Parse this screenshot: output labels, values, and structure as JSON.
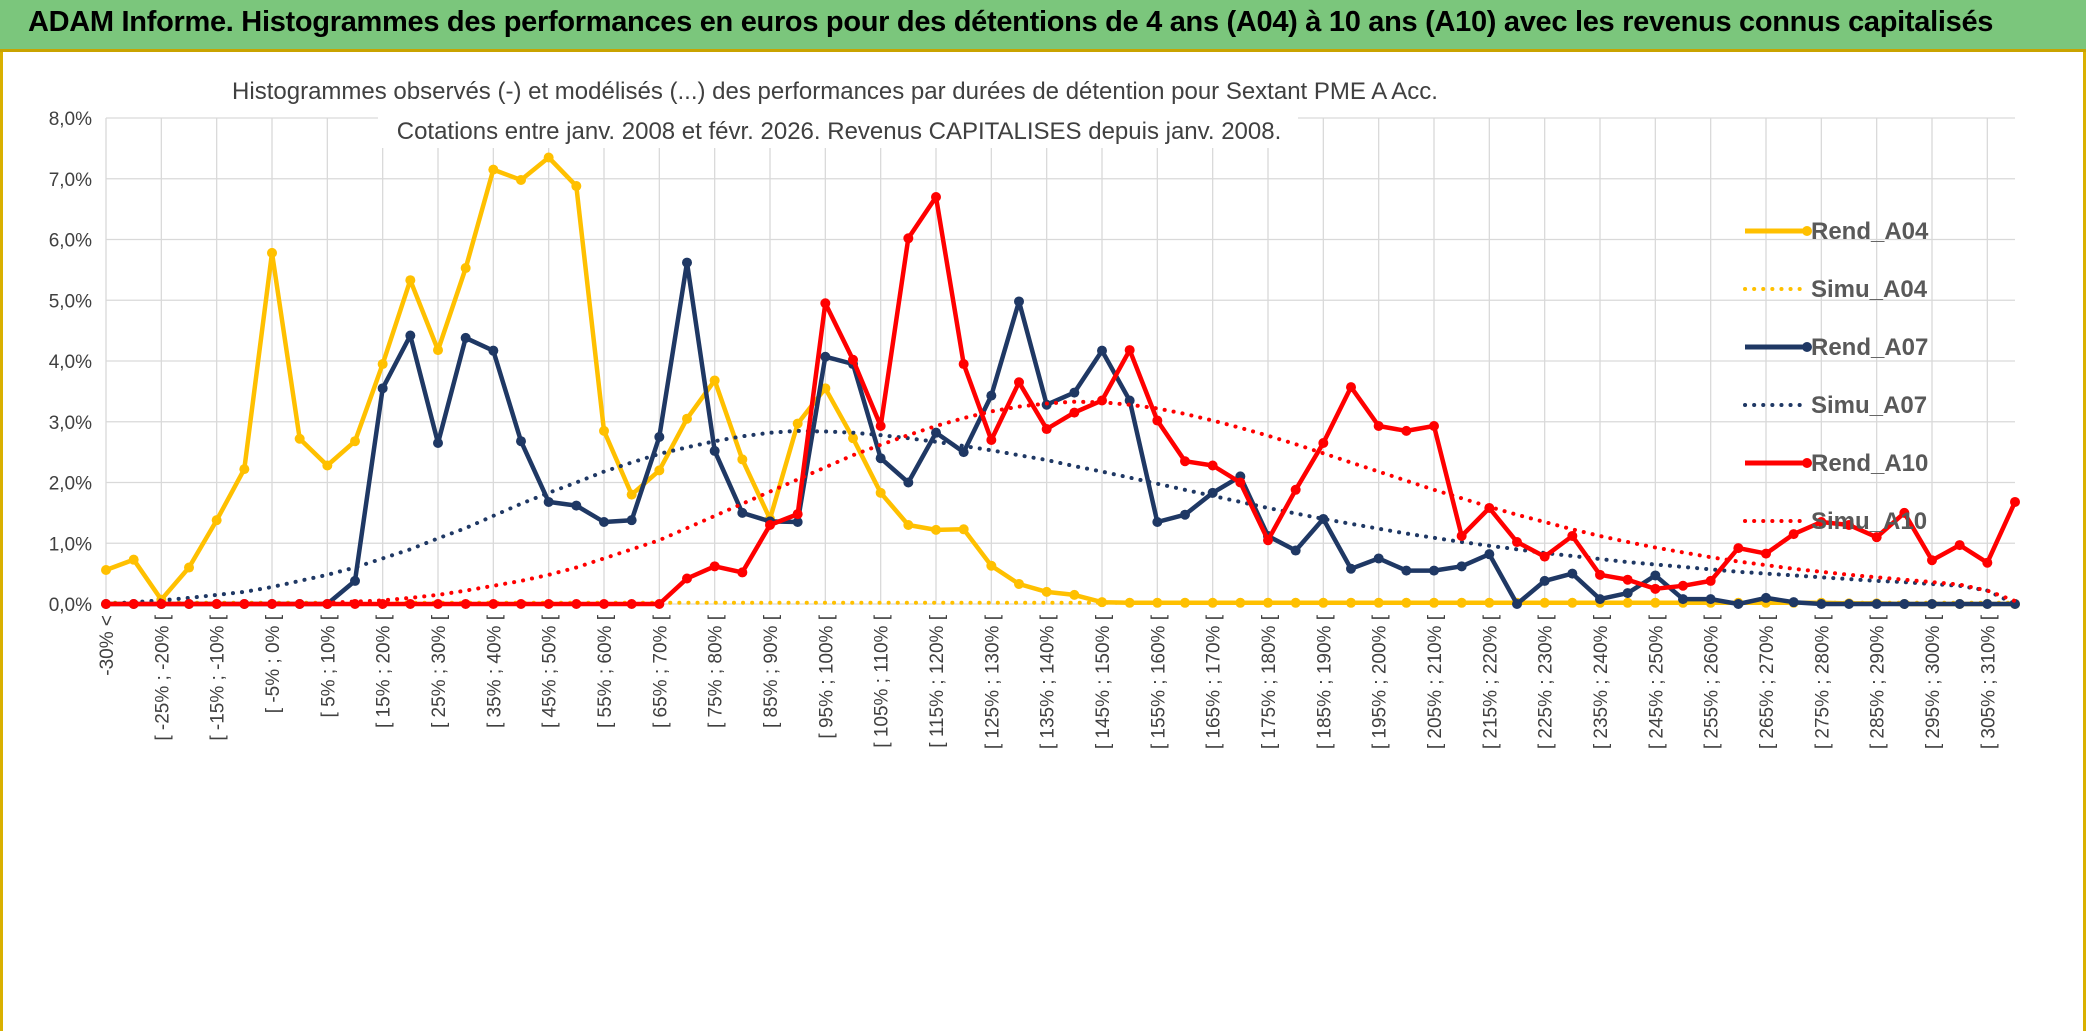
{
  "header": {
    "title": "ADAM Informe. Histogrammes des performances en euros pour des détentions de 4 ans (A04) à 10 ans (A10) avec les revenus connus capitalisés"
  },
  "chart_data": {
    "type": "line",
    "title_line1": "Histogrammes observés (-) et modélisés (...) des performances par durées de détention pour Sextant PME A Acc.",
    "title_line2": "Cotations entre janv. 2008 et févr. 2026. Revenus CAPITALISES depuis janv. 2008.",
    "ylim": [
      0,
      8
    ],
    "y_ticks": [
      "0,0%",
      "1,0%",
      "2,0%",
      "3,0%",
      "4,0%",
      "5,0%",
      "6,0%",
      "7,0%",
      "8,0%"
    ],
    "grid": true,
    "legend_position": "right",
    "x_labels": [
      "-30% <",
      "[ -25% ; -20% [",
      "[ -15% ; -10% [",
      "[ -5% ; 0% [",
      "[ 5% ; 10% [",
      "[ 15% ; 20% [",
      "[ 25% ; 30% [",
      "[ 35% ; 40% [",
      "[ 45% ; 50% [",
      "[ 55% ; 60% [",
      "[ 65% ; 70% [",
      "[ 75% ; 80% [",
      "[ 85% ; 90% [",
      "[ 95% ; 100% [",
      "[ 105% ; 110% [",
      "[ 115% ; 120% [",
      "[ 125% ; 130% [",
      "[ 135% ; 140% [",
      "[ 145% ; 150% [",
      "[ 155% ; 160% [",
      "[ 165% ; 170% [",
      "[ 175% ; 180% [",
      "[ 185% ; 190% [",
      "[ 195% ; 200% [",
      "[ 205% ; 210% [",
      "[ 215% ; 220% [",
      "[ 225% ; 230% [",
      "[ 235% ; 240% [",
      "[ 245% ; 250% [",
      "[ 255% ; 260% [",
      "[ 265% ; 270% [",
      "[ 275% ; 280% [",
      "[ 285% ; 290% [",
      "[ 295% ; 300% [",
      "[ 305% ; 310% ["
    ],
    "series": [
      {
        "name": "Rend_A04",
        "style": "solid",
        "color": "#ffc000",
        "values": [
          0.56,
          0.73,
          0.07,
          0.6,
          1.38,
          2.22,
          5.78,
          2.72,
          2.28,
          2.68,
          3.95,
          5.33,
          4.18,
          5.53,
          7.15,
          6.98,
          7.35,
          6.88,
          2.85,
          1.8,
          2.2,
          3.05,
          3.68,
          2.38,
          1.4,
          2.97,
          3.55,
          2.73,
          1.83,
          1.3,
          1.22,
          1.23,
          0.63,
          0.33,
          0.2,
          0.15,
          0.03,
          0.02,
          0.02,
          0.02,
          0.02,
          0.02,
          0.02,
          0.02,
          0.02,
          0.02,
          0.02,
          0.02,
          0.02,
          0.02,
          0.02,
          0.02,
          0.02,
          0.02,
          0.02,
          0.02,
          0.02,
          0.02,
          0.02,
          0.02,
          0.02,
          0.02,
          0.02,
          0.01,
          0.01,
          0.0,
          0.0,
          0.0,
          0.0,
          0.0
        ]
      },
      {
        "name": "Simu_A04",
        "style": "dotted",
        "color": "#ffc000",
        "values": [
          0.02,
          0.02,
          0.02,
          0.02,
          0.02,
          0.02,
          0.02,
          0.02,
          0.02,
          0.02,
          0.02,
          0.02,
          0.02,
          0.02,
          0.02,
          0.02,
          0.02,
          0.02,
          0.02,
          0.02,
          0.02,
          0.02,
          0.02,
          0.02,
          0.02,
          0.02,
          0.02,
          0.02,
          0.02,
          0.02,
          0.02,
          0.02,
          0.02,
          0.02,
          0.02,
          0.02,
          0.02,
          0.02,
          0.02,
          0.02,
          0.02,
          0.02,
          0.02,
          0.02,
          0.02,
          0.02,
          0.02,
          0.02,
          0.02,
          0.02,
          0.02,
          0.02,
          0.02,
          0.02,
          0.02,
          0.02,
          0.02,
          0.02,
          0.02,
          0.02,
          0.02,
          0.02,
          0.02,
          0.02,
          0.02,
          0.02,
          0.02,
          0.02,
          0.02,
          0.02
        ]
      },
      {
        "name": "Rend_A07",
        "style": "solid",
        "color": "#1f3864",
        "values": [
          0,
          0,
          0,
          0,
          0,
          0,
          0,
          0,
          0,
          0.38,
          3.55,
          4.42,
          2.65,
          4.38,
          4.17,
          2.68,
          1.68,
          1.62,
          1.35,
          1.38,
          2.75,
          5.62,
          2.52,
          1.5,
          1.36,
          1.35,
          4.07,
          3.95,
          2.4,
          2.0,
          2.82,
          2.5,
          3.43,
          4.98,
          3.28,
          3.48,
          4.17,
          3.35,
          1.35,
          1.47,
          1.83,
          2.1,
          1.12,
          0.88,
          1.4,
          0.58,
          0.75,
          0.55,
          0.55,
          0.62,
          0.82,
          0.0,
          0.38,
          0.5,
          0.08,
          0.18,
          0.47,
          0.08,
          0.08,
          0.0,
          0.1,
          0.03,
          0.0,
          0.0,
          0.0,
          0.0,
          0.0,
          0.0,
          0.0,
          0.0
        ]
      },
      {
        "name": "Simu_A07",
        "style": "dotted",
        "color": "#1f3864",
        "values": [
          0.0,
          0.03,
          0.06,
          0.1,
          0.15,
          0.2,
          0.28,
          0.38,
          0.48,
          0.6,
          0.75,
          0.9,
          1.08,
          1.25,
          1.45,
          1.65,
          1.83,
          2.0,
          2.18,
          2.33,
          2.47,
          2.58,
          2.68,
          2.76,
          2.82,
          2.85,
          2.84,
          2.82,
          2.78,
          2.73,
          2.67,
          2.6,
          2.53,
          2.45,
          2.37,
          2.27,
          2.18,
          2.08,
          1.98,
          1.88,
          1.78,
          1.68,
          1.58,
          1.49,
          1.4,
          1.32,
          1.24,
          1.16,
          1.09,
          1.02,
          0.96,
          0.9,
          0.84,
          0.79,
          0.74,
          0.69,
          0.65,
          0.61,
          0.57,
          0.53,
          0.5,
          0.47,
          0.44,
          0.41,
          0.38,
          0.36,
          0.33,
          0.3,
          0.22,
          0.0
        ]
      },
      {
        "name": "Rend_A10",
        "style": "solid",
        "color": "#ff0000",
        "values": [
          0,
          0,
          0,
          0,
          0,
          0,
          0,
          0,
          0,
          0,
          0,
          0,
          0,
          0,
          0,
          0,
          0,
          0,
          0,
          0,
          0,
          0.42,
          0.62,
          0.52,
          1.3,
          1.48,
          4.95,
          4.02,
          2.93,
          6.02,
          6.7,
          3.95,
          2.7,
          3.65,
          2.88,
          3.15,
          3.35,
          4.18,
          3.02,
          2.35,
          2.28,
          2.0,
          1.05,
          1.88,
          2.65,
          3.57,
          2.93,
          2.85,
          2.93,
          1.12,
          1.58,
          1.02,
          0.78,
          1.12,
          0.48,
          0.4,
          0.25,
          0.3,
          0.38,
          0.92,
          0.83,
          1.15,
          1.35,
          1.3,
          1.1,
          1.5,
          0.72,
          0.97,
          0.68,
          1.68
        ]
      },
      {
        "name": "Simu_A10",
        "style": "dotted",
        "color": "#ff0000",
        "values": [
          0,
          0,
          0,
          0,
          0,
          0,
          0,
          0,
          0.02,
          0.04,
          0.06,
          0.1,
          0.15,
          0.22,
          0.3,
          0.38,
          0.48,
          0.6,
          0.75,
          0.9,
          1.05,
          1.25,
          1.45,
          1.65,
          1.85,
          2.05,
          2.25,
          2.45,
          2.62,
          2.78,
          2.93,
          3.06,
          3.17,
          3.25,
          3.3,
          3.33,
          3.32,
          3.28,
          3.22,
          3.13,
          3.02,
          2.9,
          2.77,
          2.63,
          2.48,
          2.33,
          2.18,
          2.03,
          1.88,
          1.74,
          1.6,
          1.47,
          1.35,
          1.23,
          1.12,
          1.02,
          0.93,
          0.85,
          0.77,
          0.7,
          0.64,
          0.58,
          0.53,
          0.48,
          0.44,
          0.4,
          0.36,
          0.32,
          0.22,
          0.05
        ]
      }
    ]
  }
}
